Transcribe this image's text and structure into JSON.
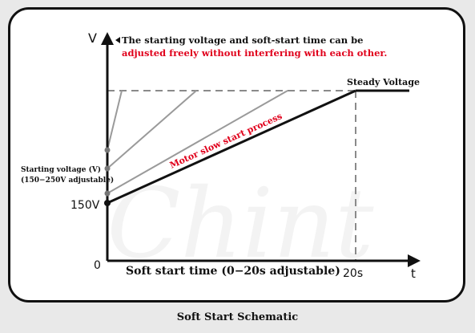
{
  "note": {
    "line1": "The starting voltage and soft-start time can be",
    "line2": "adjusted freely without interfering with each other."
  },
  "axes": {
    "y_axis_label": "V",
    "x_axis_label": "t",
    "origin_label": "0",
    "start_voltage_label": "150V",
    "time_end_label": "20s",
    "x_axis_caption": "Soft start time (0−20s adjustable)"
  },
  "labels": {
    "steady_voltage": "Steady Voltage",
    "starting_voltage_title": "Starting voltage (V)",
    "starting_voltage_range": "(150−250V adjustable)",
    "process": "Motor slow start process"
  },
  "caption": "Soft Start Schematic",
  "watermark": "Chint",
  "colors": {
    "accent_red": "#e0001b",
    "main_line": "#111111",
    "alt_line": "#9a9a9a",
    "guide": "#8a8a8a"
  }
}
